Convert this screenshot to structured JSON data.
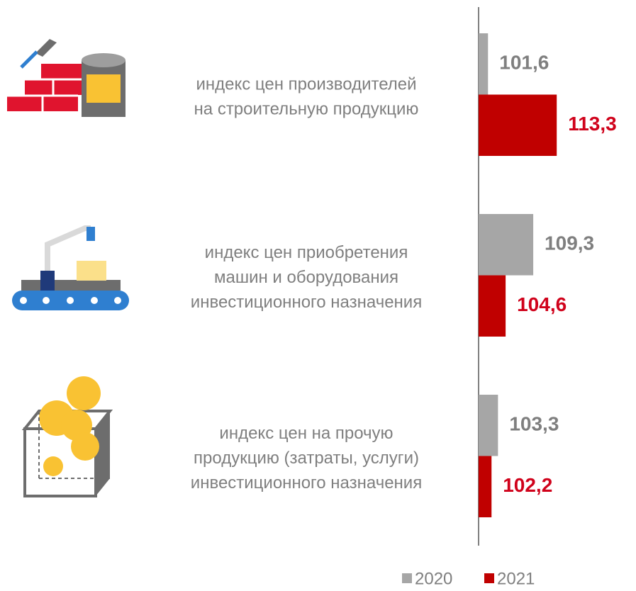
{
  "chart_data": {
    "type": "hbar",
    "categories": [
      [
        "индекс цен производителей",
        "на строительную продукцию"
      ],
      [
        "индекс цен приобретения",
        "машин и оборудования",
        "инвестиционного назначения"
      ],
      [
        "индекс цен на прочую",
        "продукцию (затраты, услуги)",
        "инвестиционного назначения"
      ]
    ],
    "series": [
      {
        "name": "2020",
        "color": "#a6a6a6",
        "label_color": "#7f7f7f",
        "values": [
          101.6,
          109.3,
          103.3
        ],
        "value_labels": [
          "101,6",
          "109,3",
          "103,3"
        ]
      },
      {
        "name": "2021",
        "color": "#c00000",
        "label_color": "#d0021b",
        "values": [
          113.3,
          104.6,
          102.2
        ],
        "value_labels": [
          "113,3",
          "104,6",
          "102,2"
        ]
      }
    ],
    "xlim": [
      100,
      114
    ],
    "legend": "bottom"
  }
}
